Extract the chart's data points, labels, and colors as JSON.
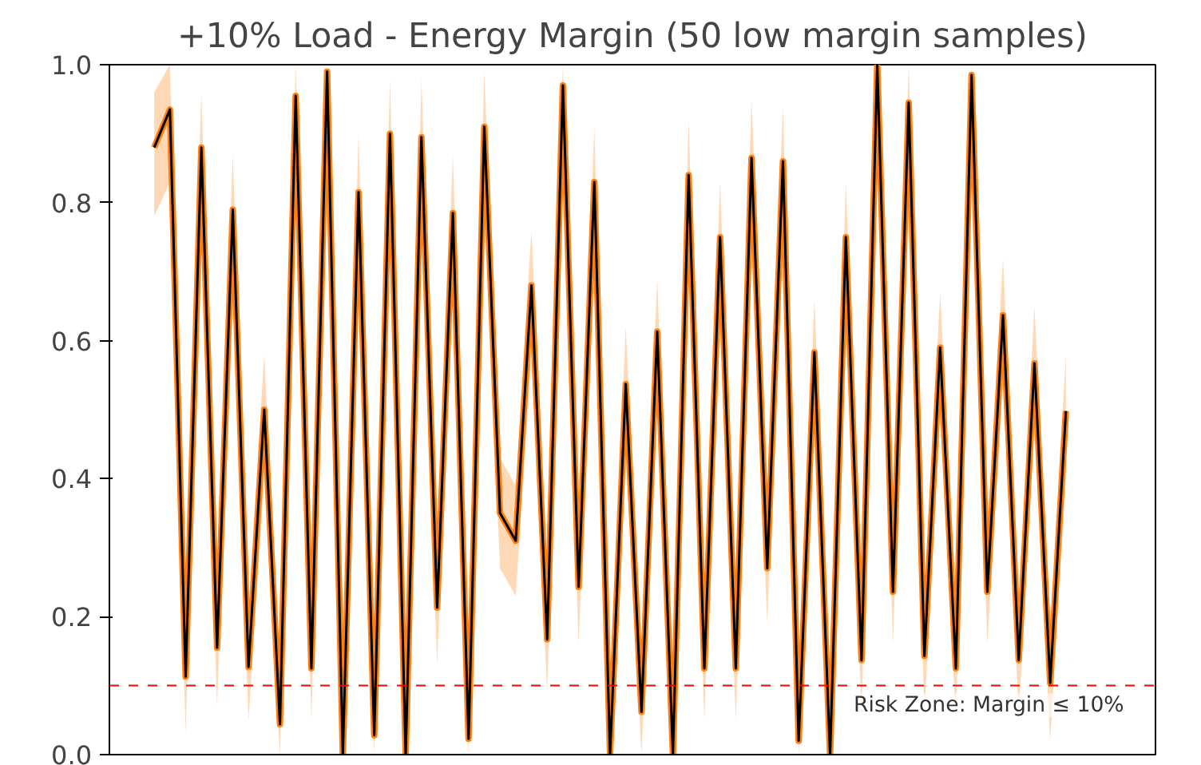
{
  "chart_data": {
    "type": "line",
    "title": "+10% Load - Energy Margin (50 low margin samples)",
    "categories": [
      null,
      null,
      null,
      null,
      null,
      null,
      null,
      null,
      null,
      null,
      null,
      null,
      null,
      null,
      null,
      null,
      null,
      null,
      null,
      null,
      null,
      null,
      null,
      null,
      null,
      null,
      null,
      null,
      null,
      null,
      null,
      null,
      null,
      null,
      null,
      null,
      null,
      null,
      null,
      null,
      null,
      null,
      null,
      null,
      null,
      null,
      null,
      null,
      null,
      null,
      null,
      null,
      null,
      null,
      null,
      null,
      null,
      null,
      null
    ],
    "series": [
      {
        "color": "#ff7f0e",
        "values": [
          0.88,
          0.935,
          0.113,
          0.88,
          0.155,
          0.79,
          0.127,
          0.5,
          0.044,
          0.955,
          0.125,
          0.99,
          0.0,
          0.815,
          0.028,
          0.9,
          0.0,
          0.895,
          0.213,
          0.785,
          0.023,
          0.91,
          0.35,
          0.31,
          0.68,
          0.167,
          0.97,
          0.243,
          0.83,
          0.0,
          0.537,
          0.062,
          0.613,
          0.0,
          0.84,
          0.125,
          0.75,
          0.125,
          0.865,
          0.27,
          0.86,
          0.02,
          0.583,
          0.0,
          0.75,
          0.137,
          1.0,
          0.236,
          0.945,
          0.143,
          0.59,
          0.125,
          0.985,
          0.236,
          0.637,
          0.137,
          0.567,
          0.104,
          0.498
        ],
        "lower": [
          0.78,
          0.83,
          0.03,
          0.78,
          0.07,
          0.69,
          0.05,
          0.4,
          0,
          0.85,
          0.05,
          0.89,
          0,
          0.71,
          0,
          0.8,
          0,
          0.79,
          0.13,
          0.68,
          0,
          0.81,
          0.27,
          0.23,
          0.58,
          0.09,
          0.87,
          0.16,
          0.73,
          0,
          0.44,
          0,
          0.51,
          0,
          0.74,
          0.05,
          0.65,
          0.05,
          0.76,
          0.19,
          0.76,
          0,
          0.48,
          0,
          0.65,
          0.06,
          0.9,
          0.16,
          0.84,
          0.06,
          0.49,
          0.05,
          0.88,
          0.16,
          0.54,
          0.06,
          0.47,
          0.02,
          0.4
        ],
        "upper": [
          0.96,
          1,
          0.19,
          0.96,
          0.24,
          0.87,
          0.21,
          0.58,
          0.12,
          1,
          0.21,
          1,
          0.08,
          0.9,
          0.11,
          0.98,
          0.08,
          0.98,
          0.29,
          0.87,
          0.1,
          0.99,
          0.43,
          0.39,
          0.76,
          0.25,
          1,
          0.32,
          0.91,
          0.08,
          0.62,
          0.14,
          0.69,
          0.08,
          0.92,
          0.21,
          0.83,
          0.21,
          0.95,
          0.35,
          0.94,
          0.1,
          0.66,
          0.08,
          0.83,
          0.22,
          1,
          0.32,
          1,
          0.22,
          0.67,
          0.21,
          1,
          0.32,
          0.72,
          0.22,
          0.65,
          0.18,
          0.58
        ]
      },
      {
        "color": "#000000",
        "values": [
          0.88,
          0.935,
          0.113,
          0.88,
          0.155,
          0.79,
          0.127,
          0.5,
          0.044,
          0.955,
          0.125,
          0.99,
          0.0,
          0.815,
          0.028,
          0.9,
          0.0,
          0.895,
          0.213,
          0.785,
          0.023,
          0.91,
          0.35,
          0.31,
          0.68,
          0.167,
          0.97,
          0.243,
          0.83,
          0.0,
          0.537,
          0.062,
          0.613,
          0.0,
          0.84,
          0.125,
          0.75,
          0.125,
          0.865,
          0.27,
          0.86,
          0.02,
          0.583,
          0.0,
          0.75,
          0.137,
          1.0,
          0.236,
          0.945,
          0.143,
          0.59,
          0.125,
          0.985,
          0.236,
          0.637,
          0.137,
          0.567,
          0.104,
          0.498
        ]
      }
    ],
    "ylim": [
      0,
      1.0
    ],
    "yticks": [
      {
        "value": 0,
        "label": "0.0"
      },
      {
        "value": 0.2,
        "label": "0.2"
      },
      {
        "value": 0.4,
        "label": "0.4"
      },
      {
        "value": 0.6,
        "label": "0.6"
      },
      {
        "value": 0.8,
        "label": "0.8"
      },
      {
        "value": 1.0,
        "label": "1.0"
      }
    ],
    "ref_lines": [
      {
        "axis": "y",
        "value": 0.1,
        "label": "Risk Zone: Margin ≤ 10%",
        "color": "#ff0000",
        "line_style": "dashed"
      }
    ],
    "grid": false,
    "tick_labels": "y"
  }
}
